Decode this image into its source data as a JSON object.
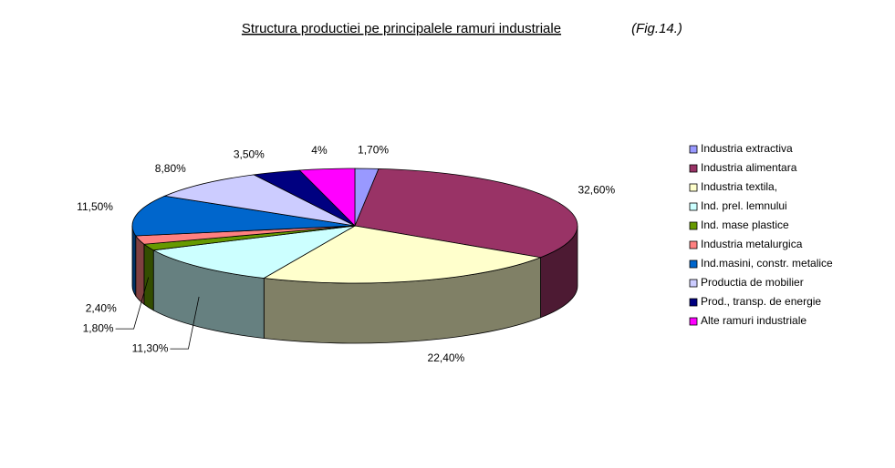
{
  "chart_data": {
    "type": "pie",
    "title": "Structura productiei pe principalele ramuri industriale",
    "subtitle": "(Fig.14.)",
    "categories": [
      "Industria extractiva",
      "Industria alimentara",
      "Industria textila,",
      "Ind. prel. lemnului",
      "Ind. mase plastice",
      "Industria metalurgica",
      "Ind.masini, constr. metalice",
      "Productia de mobilier",
      "Prod., transp. de energie",
      "Alte ramuri industriale"
    ],
    "values": [
      1.7,
      32.6,
      22.4,
      11.3,
      1.8,
      2.4,
      11.5,
      8.8,
      3.5,
      4
    ],
    "value_labels": [
      "1,70%",
      "32,60%",
      "22,40%",
      "11,30%",
      "1,80%",
      "2,40%",
      "11,50%",
      "8,80%",
      "3,50%",
      "4%"
    ],
    "colors": [
      "#9999ff",
      "#993366",
      "#ffffcc",
      "#ccffff",
      "#669900",
      "#ff8080",
      "#0066cc",
      "#ccccff",
      "#000080",
      "#ff00ff"
    ],
    "legend": "right"
  }
}
